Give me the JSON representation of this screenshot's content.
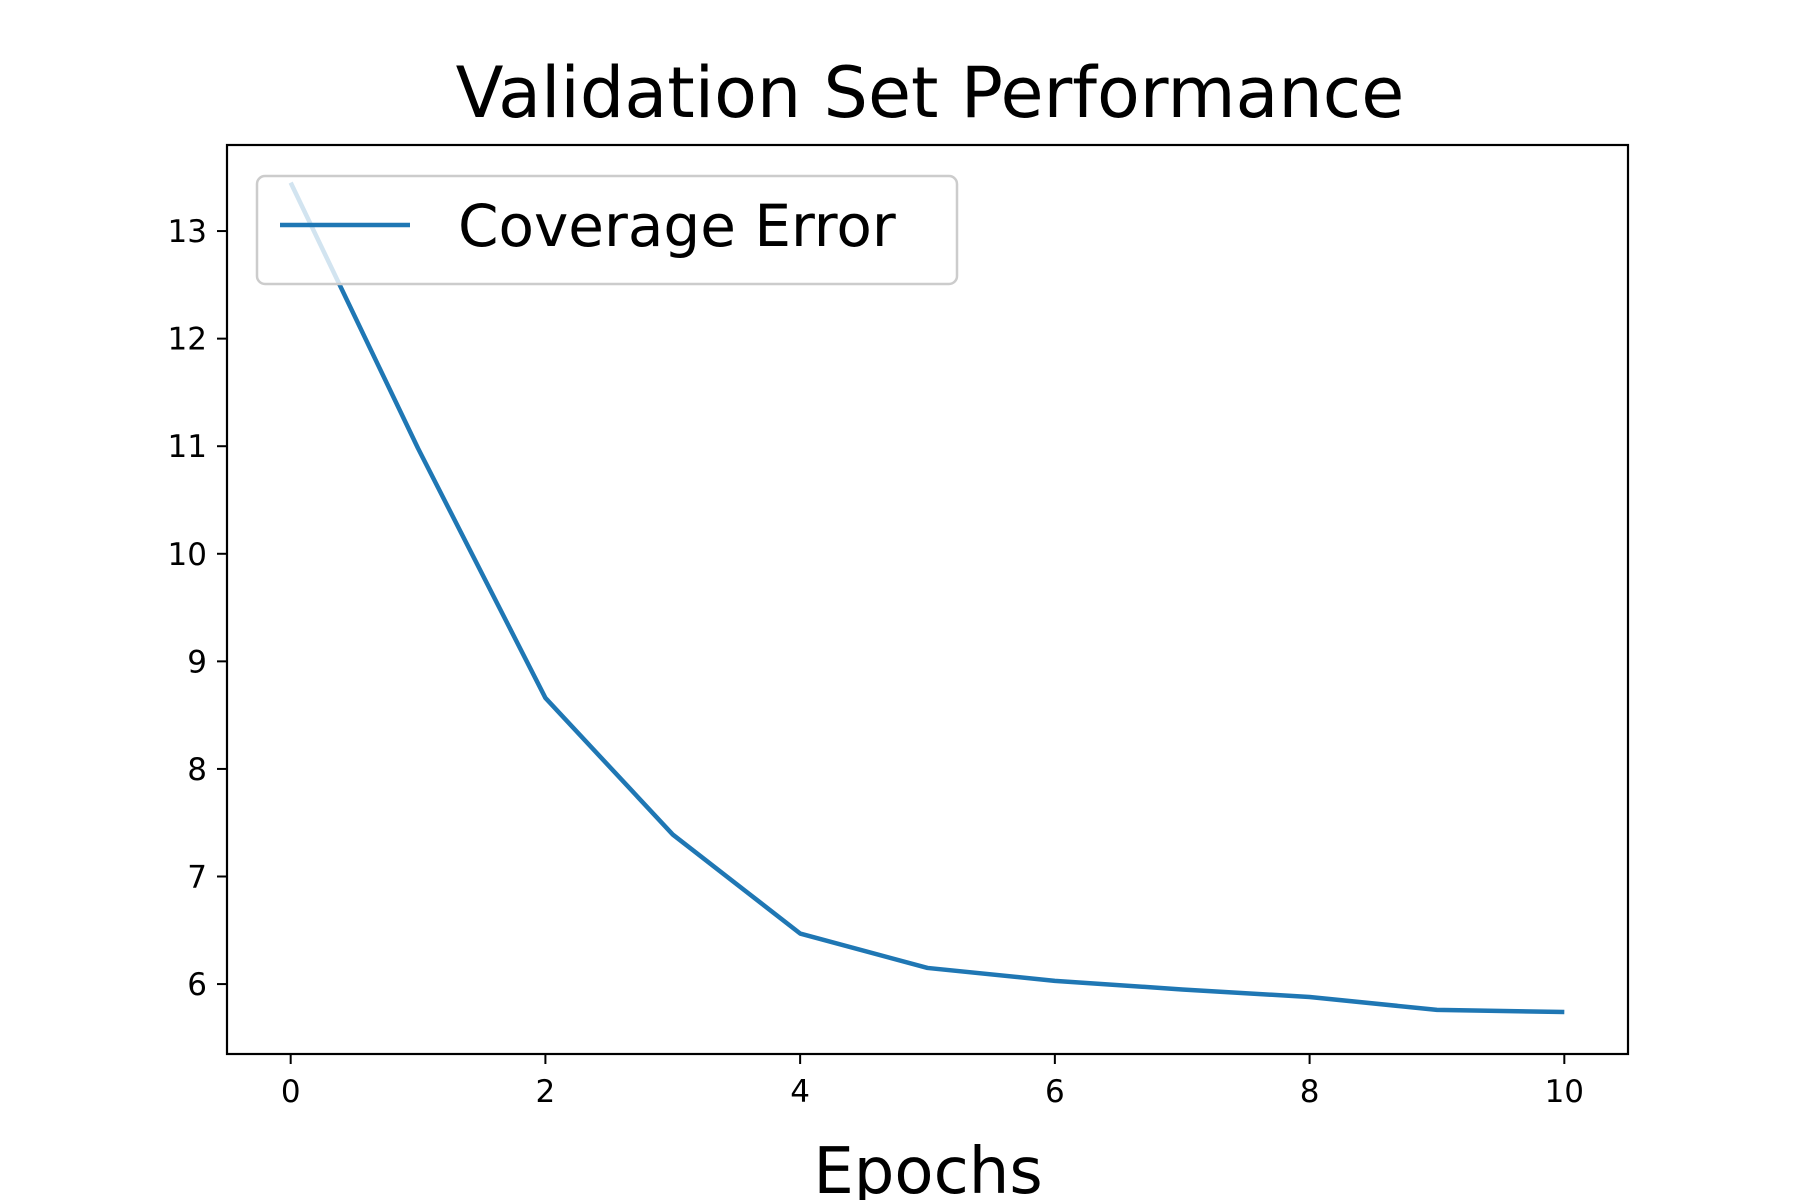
{
  "chart_data": {
    "type": "line",
    "title": "Validation Set Performance",
    "xlabel": "Epochs",
    "ylabel": "",
    "xlim": [
      -0.5,
      10.5
    ],
    "ylim": [
      5.35,
      13.8
    ],
    "xticks": [
      0,
      2,
      4,
      6,
      8,
      10
    ],
    "yticks": [
      6,
      7,
      8,
      9,
      10,
      11,
      12,
      13
    ],
    "grid": false,
    "legend": {
      "placement": "top-left"
    },
    "series": [
      {
        "name": "Coverage Error",
        "color": "#1f77b4",
        "x": [
          0,
          1,
          2,
          3,
          4,
          5,
          6,
          7,
          8,
          9,
          10
        ],
        "y": [
          13.45,
          10.98,
          8.66,
          7.39,
          6.47,
          6.15,
          6.03,
          5.95,
          5.88,
          5.76,
          5.74
        ]
      }
    ]
  }
}
